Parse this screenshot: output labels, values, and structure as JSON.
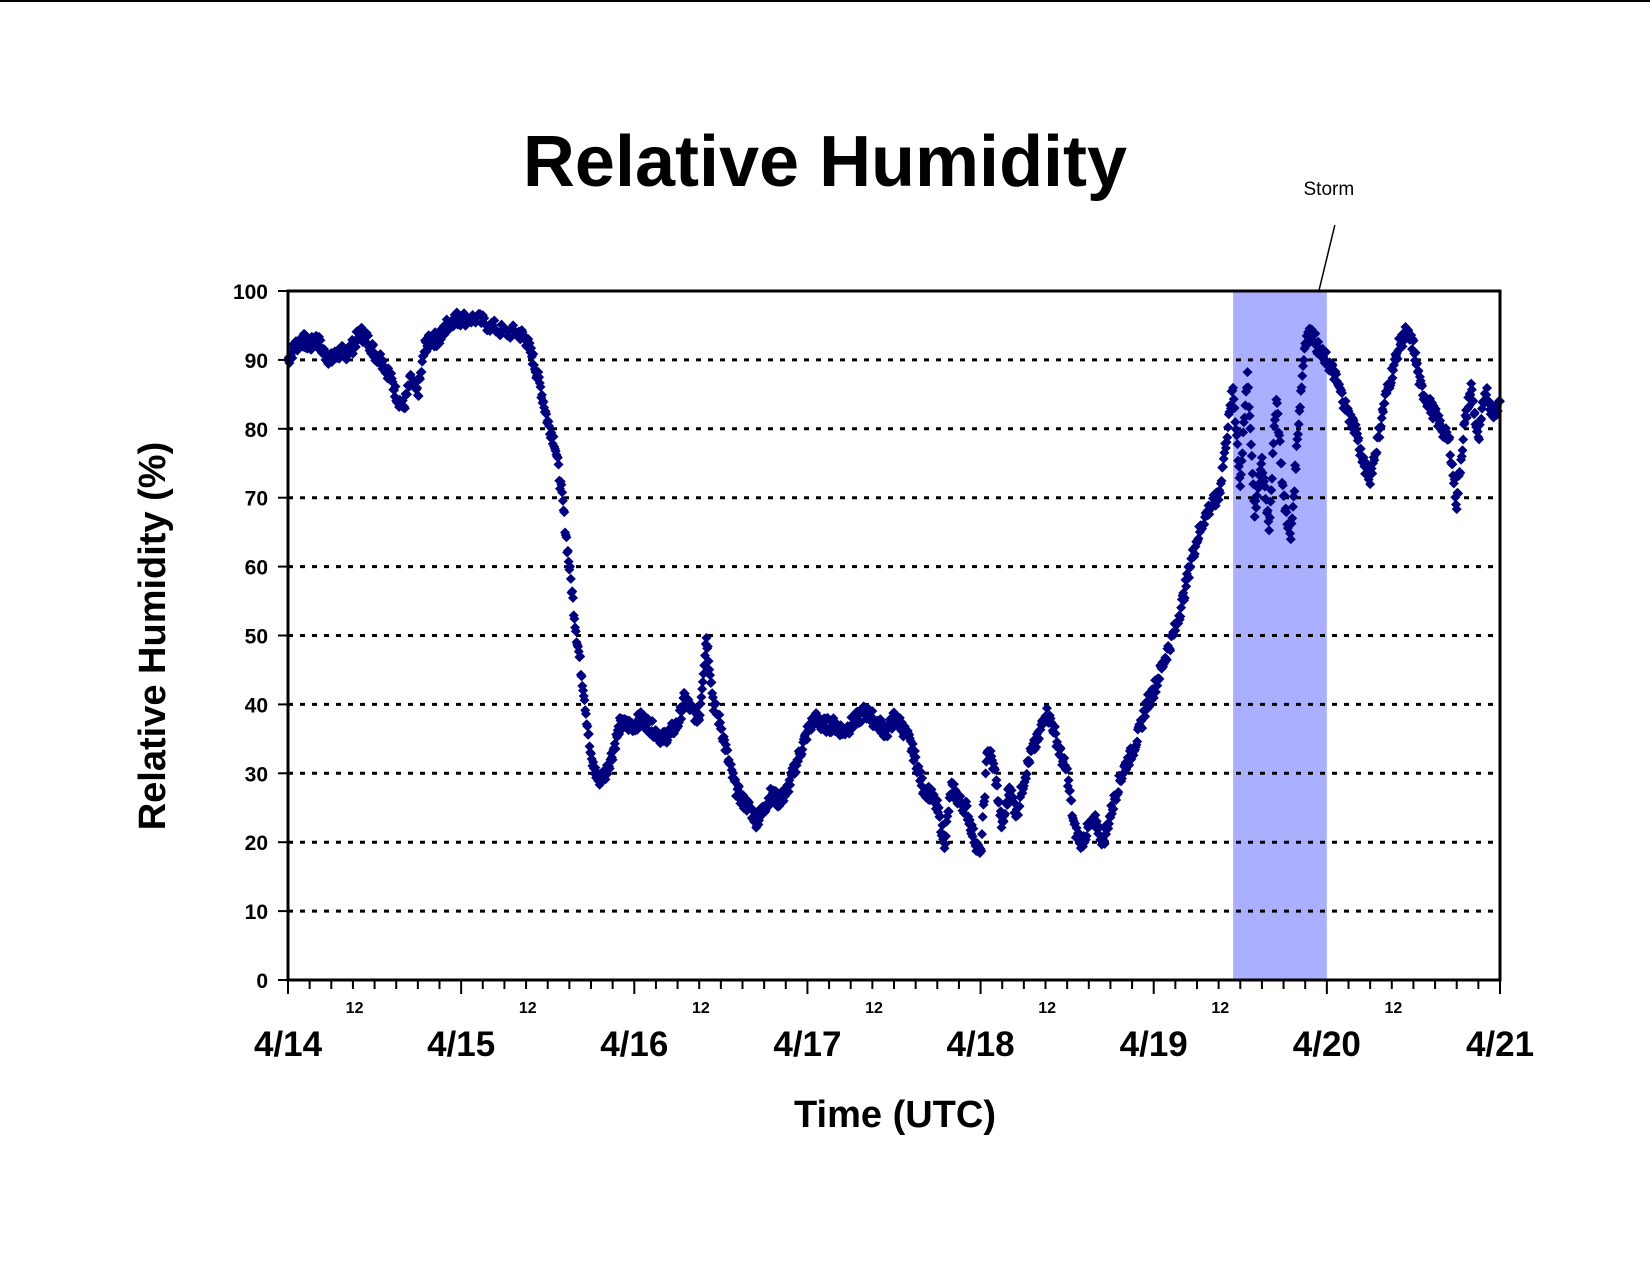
{
  "chart_data": {
    "type": "scatter",
    "title": "Relative Humidity",
    "xlabel": "Time (UTC)",
    "ylabel": "Relative Humidity (%)",
    "ylim": [
      0,
      100
    ],
    "yticks": [
      "0",
      "10",
      "20",
      "30",
      "40",
      "50",
      "60",
      "70",
      "80",
      "90",
      "100"
    ],
    "xlim": [
      "4/14 00:00",
      "4/21 00:00"
    ],
    "x_day_labels": [
      "4/14",
      "4/15",
      "4/16",
      "4/17",
      "4/18",
      "4/19",
      "4/20",
      "4/21"
    ],
    "x_hour_label": "12",
    "grid": "horizontal dotted",
    "marker_color": "#00007f",
    "highlight": {
      "label": "Storm",
      "start": "4/19 11:00",
      "end": "4/20 00:00",
      "color": "#aab0ff"
    },
    "series": [
      {
        "points": [
          [
            "4/14 00:00",
            90
          ],
          [
            "4/14 01:00",
            92
          ],
          [
            "4/14 02:00",
            93
          ],
          [
            "4/14 03:00",
            92
          ],
          [
            "4/14 04:00",
            93
          ],
          [
            "4/14 05:00",
            91
          ],
          [
            "4/14 06:00",
            90
          ],
          [
            "4/14 07:00",
            91
          ],
          [
            "4/14 08:00",
            91
          ],
          [
            "4/14 09:00",
            92
          ],
          [
            "4/14 10:00",
            94
          ],
          [
            "4/14 11:00",
            93
          ],
          [
            "4/14 12:00",
            91
          ],
          [
            "4/14 13:00",
            90
          ],
          [
            "4/14 14:00",
            88
          ],
          [
            "4/14 15:00",
            85
          ],
          [
            "4/14 16:00",
            83
          ],
          [
            "4/14 17:00",
            87
          ],
          [
            "4/14 18:00",
            85
          ],
          [
            "4/14 19:00",
            92
          ],
          [
            "4/14 20:00",
            93
          ],
          [
            "4/14 21:00",
            93
          ],
          [
            "4/14 22:00",
            95
          ],
          [
            "4/14 23:00",
            96
          ],
          [
            "4/15 00:00",
            96
          ],
          [
            "4/15 02:00",
            96
          ],
          [
            "4/15 04:00",
            95
          ],
          [
            "4/15 06:00",
            94
          ],
          [
            "4/15 08:00",
            94
          ],
          [
            "4/15 09:00",
            93
          ],
          [
            "4/15 10:00",
            90
          ],
          [
            "4/15 11:00",
            86
          ],
          [
            "4/15 12:00",
            81
          ],
          [
            "4/15 13:00",
            78
          ],
          [
            "4/15 14:00",
            70
          ],
          [
            "4/15 15:00",
            60
          ],
          [
            "4/15 16:00",
            50
          ],
          [
            "4/15 17:00",
            42
          ],
          [
            "4/15 18:00",
            32
          ],
          [
            "4/15 19:00",
            29
          ],
          [
            "4/15 20:00",
            30
          ],
          [
            "4/15 21:00",
            33
          ],
          [
            "4/15 22:00",
            37
          ],
          [
            "4/15 23:00",
            37
          ],
          [
            "4/16 00:00",
            37
          ],
          [
            "4/16 01:00",
            38
          ],
          [
            "4/16 02:00",
            37
          ],
          [
            "4/16 03:00",
            36
          ],
          [
            "4/16 04:00",
            35
          ],
          [
            "4/16 05:00",
            36
          ],
          [
            "4/16 06:00",
            37
          ],
          [
            "4/16 07:00",
            41
          ],
          [
            "4/16 08:00",
            39
          ],
          [
            "4/16 09:00",
            38
          ],
          [
            "4/16 10:00",
            50
          ],
          [
            "4/16 11:00",
            40
          ],
          [
            "4/16 12:00",
            37
          ],
          [
            "4/16 13:00",
            32
          ],
          [
            "4/16 14:00",
            28
          ],
          [
            "4/16 15:00",
            26
          ],
          [
            "4/16 16:00",
            25
          ],
          [
            "4/16 17:00",
            23
          ],
          [
            "4/16 18:00",
            25
          ],
          [
            "4/16 19:00",
            27
          ],
          [
            "4/16 20:00",
            26
          ],
          [
            "4/16 21:00",
            27
          ],
          [
            "4/16 22:00",
            30
          ],
          [
            "4/16 23:00",
            33
          ],
          [
            "4/17 00:00",
            36
          ],
          [
            "4/17 01:00",
            38
          ],
          [
            "4/17 02:00",
            37
          ],
          [
            "4/17 03:00",
            37
          ],
          [
            "4/17 04:00",
            37
          ],
          [
            "4/17 05:00",
            36
          ],
          [
            "4/17 06:00",
            37
          ],
          [
            "4/17 07:00",
            38
          ],
          [
            "4/17 08:00",
            39
          ],
          [
            "4/17 09:00",
            38
          ],
          [
            "4/17 10:00",
            37
          ],
          [
            "4/17 11:00",
            36
          ],
          [
            "4/17 12:00",
            38
          ],
          [
            "4/17 13:00",
            37
          ],
          [
            "4/17 14:00",
            35
          ],
          [
            "4/17 15:00",
            32
          ],
          [
            "4/17 16:00",
            28
          ],
          [
            "4/17 17:00",
            27
          ],
          [
            "4/17 18:00",
            25
          ],
          [
            "4/17 19:00",
            20
          ],
          [
            "4/17 20:00",
            28
          ],
          [
            "4/17 21:00",
            26
          ],
          [
            "4/17 22:00",
            25
          ],
          [
            "4/17 23:00",
            21
          ],
          [
            "4/18 00:00",
            18
          ],
          [
            "4/18 01:00",
            34
          ],
          [
            "4/18 02:00",
            30
          ],
          [
            "4/18 03:00",
            22
          ],
          [
            "4/18 04:00",
            28
          ],
          [
            "4/18 05:00",
            24
          ],
          [
            "4/18 06:00",
            29
          ],
          [
            "4/18 07:00",
            33
          ],
          [
            "4/18 08:00",
            35
          ],
          [
            "4/18 09:00",
            39
          ],
          [
            "4/18 10:00",
            37
          ],
          [
            "4/18 11:00",
            33
          ],
          [
            "4/18 12:00",
            30
          ],
          [
            "4/18 13:00",
            22
          ],
          [
            "4/18 14:00",
            20
          ],
          [
            "4/18 15:00",
            22
          ],
          [
            "4/18 16:00",
            23
          ],
          [
            "4/18 17:00",
            20
          ],
          [
            "4/18 18:00",
            24
          ],
          [
            "4/18 19:00",
            28
          ],
          [
            "4/18 20:00",
            31
          ],
          [
            "4/18 21:00",
            33
          ],
          [
            "4/18 22:00",
            36
          ],
          [
            "4/18 23:00",
            40
          ],
          [
            "4/19 00:00",
            42
          ],
          [
            "4/19 01:00",
            45
          ],
          [
            "4/19 02:00",
            48
          ],
          [
            "4/19 03:00",
            51
          ],
          [
            "4/19 04:00",
            55
          ],
          [
            "4/19 05:00",
            60
          ],
          [
            "4/19 06:00",
            64
          ],
          [
            "4/19 07:00",
            67
          ],
          [
            "4/19 08:00",
            69
          ],
          [
            "4/19 09:00",
            70
          ],
          [
            "4/19 10:00",
            78
          ],
          [
            "4/19 11:00",
            86
          ],
          [
            "4/19 12:00",
            72
          ],
          [
            "4/19 13:00",
            88
          ],
          [
            "4/19 14:00",
            68
          ],
          [
            "4/19 15:00",
            75
          ],
          [
            "4/19 16:00",
            66
          ],
          [
            "4/19 17:00",
            85
          ],
          [
            "4/19 18:00",
            70
          ],
          [
            "4/19 19:00",
            64
          ],
          [
            "4/19 20:00",
            80
          ],
          [
            "4/19 21:00",
            93
          ],
          [
            "4/19 22:00",
            94
          ],
          [
            "4/19 23:00",
            91
          ],
          [
            "4/20 00:00",
            90
          ],
          [
            "4/20 01:00",
            88
          ],
          [
            "4/20 02:00",
            85
          ],
          [
            "4/20 03:00",
            82
          ],
          [
            "4/20 04:00",
            80
          ],
          [
            "4/20 05:00",
            75
          ],
          [
            "4/20 06:00",
            73
          ],
          [
            "4/20 07:00",
            78
          ],
          [
            "4/20 08:00",
            84
          ],
          [
            "4/20 09:00",
            88
          ],
          [
            "4/20 10:00",
            92
          ],
          [
            "4/20 11:00",
            94
          ],
          [
            "4/20 12:00",
            92
          ],
          [
            "4/20 13:00",
            86
          ],
          [
            "4/20 14:00",
            84
          ],
          [
            "4/20 15:00",
            82
          ],
          [
            "4/20 16:00",
            80
          ],
          [
            "4/20 17:00",
            78
          ],
          [
            "4/20 18:00",
            69
          ],
          [
            "4/20 19:00",
            80
          ],
          [
            "4/20 20:00",
            86
          ],
          [
            "4/20 21:00",
            78
          ],
          [
            "4/20 22:00",
            86
          ],
          [
            "4/20 23:00",
            82
          ],
          [
            "4/21 00:00",
            84
          ]
        ]
      }
    ]
  }
}
